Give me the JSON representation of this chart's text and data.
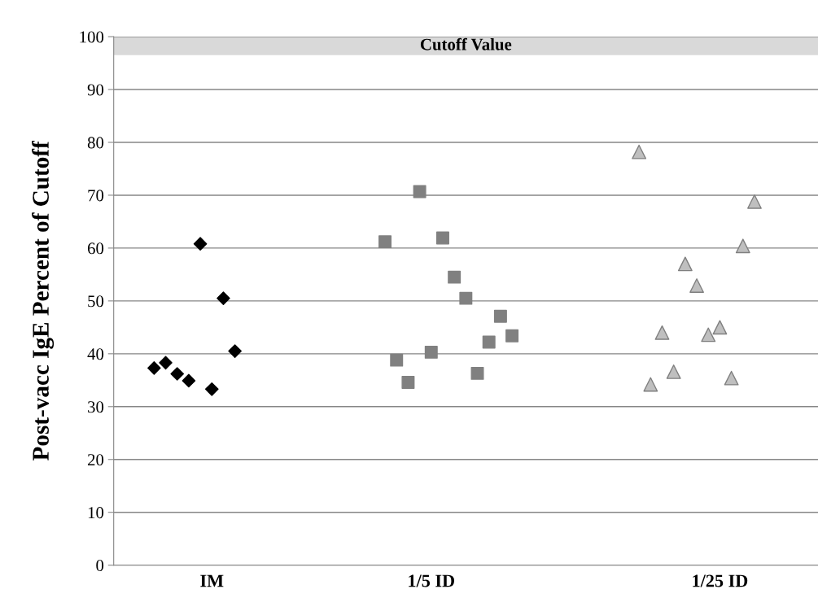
{
  "chart_data": {
    "type": "scatter",
    "ylabel": "Post-vacc IgE Percent of Cutoff",
    "categories": [
      null,
      null,
      null,
      null,
      null,
      null,
      null,
      "IM",
      null,
      null,
      null,
      null,
      null,
      null,
      null,
      null,
      null,
      null,
      null,
      null,
      null,
      null,
      null,
      null,
      null,
      null,
      "1/5 ID",
      null,
      null,
      null,
      null,
      null,
      null,
      null,
      null,
      null,
      null,
      null,
      null,
      null,
      null,
      null,
      null,
      null,
      null,
      null,
      null,
      null,
      null,
      null,
      null,
      "1/25 ID",
      null,
      null,
      null,
      null,
      null,
      null,
      null,
      null
    ],
    "ylim": [
      0,
      100
    ],
    "yticks": [
      0,
      10,
      20,
      30,
      40,
      50,
      60,
      70,
      80,
      90,
      100
    ],
    "grid": "y",
    "bands": [
      {
        "axis": "y",
        "from": 96.5,
        "to": 100,
        "label": "Cutoff Value",
        "color": "#d9d9d9"
      }
    ],
    "series": [
      {
        "color": "#000000",
        "marker": "diamond",
        "values": [
          null,
          null,
          37.3,
          38.3,
          36.2,
          34.9,
          60.8,
          33.3,
          50.5,
          40.5,
          null,
          null,
          null,
          null,
          null,
          null,
          null,
          null,
          null,
          null,
          null,
          null,
          null,
          null,
          null,
          null,
          null,
          null,
          null,
          null,
          null,
          null,
          null,
          null,
          null,
          null,
          null,
          null,
          null,
          null,
          null,
          null,
          null,
          null,
          null,
          null,
          null,
          null,
          null,
          null,
          null,
          null,
          null,
          null,
          null,
          null,
          null,
          null,
          null,
          null
        ]
      },
      {
        "color": "#808080",
        "marker": "square",
        "values": [
          null,
          null,
          null,
          null,
          null,
          null,
          null,
          null,
          null,
          null,
          null,
          null,
          null,
          null,
          null,
          null,
          null,
          null,
          null,
          null,
          null,
          null,
          61.2,
          38.8,
          34.6,
          70.7,
          40.3,
          61.9,
          54.5,
          50.5,
          36.3,
          42.2,
          47.1,
          43.4,
          null,
          null,
          null,
          null,
          null,
          null,
          null,
          null,
          null,
          null,
          null,
          null,
          null,
          null,
          null,
          null,
          null,
          null,
          null,
          null,
          null,
          null,
          null,
          null,
          null,
          null
        ]
      },
      {
        "color": "#bfbfbf",
        "marker": "triangle",
        "values": [
          null,
          null,
          null,
          null,
          null,
          null,
          null,
          null,
          null,
          null,
          null,
          null,
          null,
          null,
          null,
          null,
          null,
          null,
          null,
          null,
          null,
          null,
          null,
          null,
          null,
          null,
          null,
          null,
          null,
          null,
          null,
          null,
          null,
          null,
          null,
          null,
          null,
          null,
          null,
          null,
          null,
          null,
          null,
          null,
          78.2,
          34.2,
          44.0,
          36.6,
          57.0,
          52.9,
          43.6,
          45.0,
          35.4,
          60.4,
          68.8,
          null,
          null,
          null,
          null,
          null
        ]
      }
    ]
  }
}
